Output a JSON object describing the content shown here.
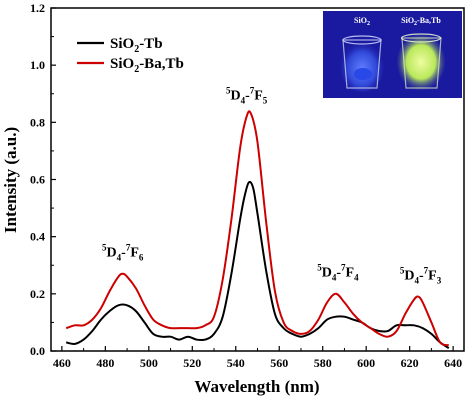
{
  "chart_data": {
    "type": "line",
    "title": "",
    "xlabel": "Wavelength (nm)",
    "ylabel": "Intensity (a.u.)",
    "xlim": [
      455,
      645
    ],
    "ylim": [
      0.0,
      1.2
    ],
    "x_ticks": [
      460,
      480,
      500,
      520,
      540,
      560,
      580,
      600,
      620,
      640
    ],
    "y_ticks": [
      0.0,
      0.2,
      0.4,
      0.6,
      0.8,
      1.0,
      1.2
    ],
    "y_tick_labels": [
      "0.0",
      "0.2",
      "0.4",
      "0.6",
      "0.8",
      "1.0",
      "1.2"
    ],
    "legend_position": "top-left",
    "series": [
      {
        "name": "SiO2-Tb",
        "name_parts": [
          "SiO",
          "2",
          "-Tb"
        ],
        "color": "#000000",
        "points": [
          [
            462,
            0.03
          ],
          [
            466,
            0.025
          ],
          [
            470,
            0.04
          ],
          [
            474,
            0.07
          ],
          [
            478,
            0.11
          ],
          [
            482,
            0.14
          ],
          [
            486,
            0.16
          ],
          [
            490,
            0.16
          ],
          [
            494,
            0.14
          ],
          [
            498,
            0.1
          ],
          [
            502,
            0.06
          ],
          [
            506,
            0.05
          ],
          [
            510,
            0.05
          ],
          [
            514,
            0.04
          ],
          [
            518,
            0.05
          ],
          [
            522,
            0.04
          ],
          [
            526,
            0.04
          ],
          [
            530,
            0.06
          ],
          [
            534,
            0.12
          ],
          [
            538,
            0.27
          ],
          [
            542,
            0.46
          ],
          [
            544,
            0.54
          ],
          [
            546,
            0.59
          ],
          [
            548,
            0.57
          ],
          [
            550,
            0.48
          ],
          [
            554,
            0.28
          ],
          [
            558,
            0.13
          ],
          [
            562,
            0.08
          ],
          [
            566,
            0.06
          ],
          [
            570,
            0.05
          ],
          [
            574,
            0.06
          ],
          [
            578,
            0.08
          ],
          [
            582,
            0.11
          ],
          [
            586,
            0.12
          ],
          [
            590,
            0.12
          ],
          [
            594,
            0.11
          ],
          [
            598,
            0.1
          ],
          [
            602,
            0.08
          ],
          [
            606,
            0.07
          ],
          [
            610,
            0.07
          ],
          [
            614,
            0.09
          ],
          [
            618,
            0.09
          ],
          [
            622,
            0.09
          ],
          [
            626,
            0.08
          ],
          [
            630,
            0.06
          ],
          [
            634,
            0.03
          ],
          [
            638,
            0.01
          ]
        ]
      },
      {
        "name": "SiO2-Ba,Tb",
        "name_parts": [
          "SiO",
          "2",
          "-Ba,Tb"
        ],
        "color": "#cc0000",
        "points": [
          [
            462,
            0.08
          ],
          [
            466,
            0.09
          ],
          [
            470,
            0.09
          ],
          [
            474,
            0.11
          ],
          [
            478,
            0.15
          ],
          [
            482,
            0.21
          ],
          [
            486,
            0.26
          ],
          [
            488,
            0.27
          ],
          [
            490,
            0.26
          ],
          [
            494,
            0.22
          ],
          [
            498,
            0.16
          ],
          [
            502,
            0.11
          ],
          [
            506,
            0.09
          ],
          [
            510,
            0.08
          ],
          [
            514,
            0.08
          ],
          [
            518,
            0.08
          ],
          [
            522,
            0.08
          ],
          [
            526,
            0.09
          ],
          [
            530,
            0.12
          ],
          [
            534,
            0.25
          ],
          [
            538,
            0.46
          ],
          [
            542,
            0.71
          ],
          [
            545,
            0.82
          ],
          [
            547,
            0.83
          ],
          [
            550,
            0.73
          ],
          [
            554,
            0.45
          ],
          [
            558,
            0.21
          ],
          [
            562,
            0.1
          ],
          [
            566,
            0.07
          ],
          [
            570,
            0.06
          ],
          [
            574,
            0.07
          ],
          [
            578,
            0.11
          ],
          [
            582,
            0.17
          ],
          [
            586,
            0.2
          ],
          [
            590,
            0.17
          ],
          [
            594,
            0.13
          ],
          [
            598,
            0.1
          ],
          [
            602,
            0.08
          ],
          [
            606,
            0.06
          ],
          [
            610,
            0.05
          ],
          [
            614,
            0.07
          ],
          [
            618,
            0.13
          ],
          [
            622,
            0.18
          ],
          [
            624,
            0.19
          ],
          [
            626,
            0.17
          ],
          [
            630,
            0.1
          ],
          [
            634,
            0.03
          ],
          [
            638,
            0.02
          ]
        ]
      }
    ],
    "annotations": [
      {
        "id": "f6",
        "sup1": "5",
        "main1": "D",
        "sub1": "4",
        "dash": "-",
        "sup2": "7",
        "main2": "F",
        "sub2": "6",
        "x": 488,
        "y": 0.33
      },
      {
        "id": "f5",
        "sup1": "5",
        "main1": "D",
        "sub1": "4",
        "dash": "-",
        "sup2": "7",
        "main2": "F",
        "sub2": "5",
        "x": 545,
        "y": 0.88
      },
      {
        "id": "f4",
        "sup1": "5",
        "main1": "D",
        "sub1": "4",
        "dash": "-",
        "sup2": "7",
        "main2": "F",
        "sub2": "4",
        "x": 587,
        "y": 0.26
      },
      {
        "id": "f3",
        "sup1": "5",
        "main1": "D",
        "sub1": "4",
        "dash": "-",
        "sup2": "7",
        "main2": "F",
        "sub2": "3",
        "x": 625,
        "y": 0.25
      }
    ],
    "inset": {
      "labels": [
        {
          "text": "SiO",
          "sub": "2",
          "suffix": ""
        },
        {
          "text": "SiO",
          "sub": "2",
          "suffix": "-Ba,Tb"
        }
      ],
      "background": "#1a1aa0",
      "left_glow": "#3d5cf0",
      "right_glow": "#d8f57a"
    }
  }
}
